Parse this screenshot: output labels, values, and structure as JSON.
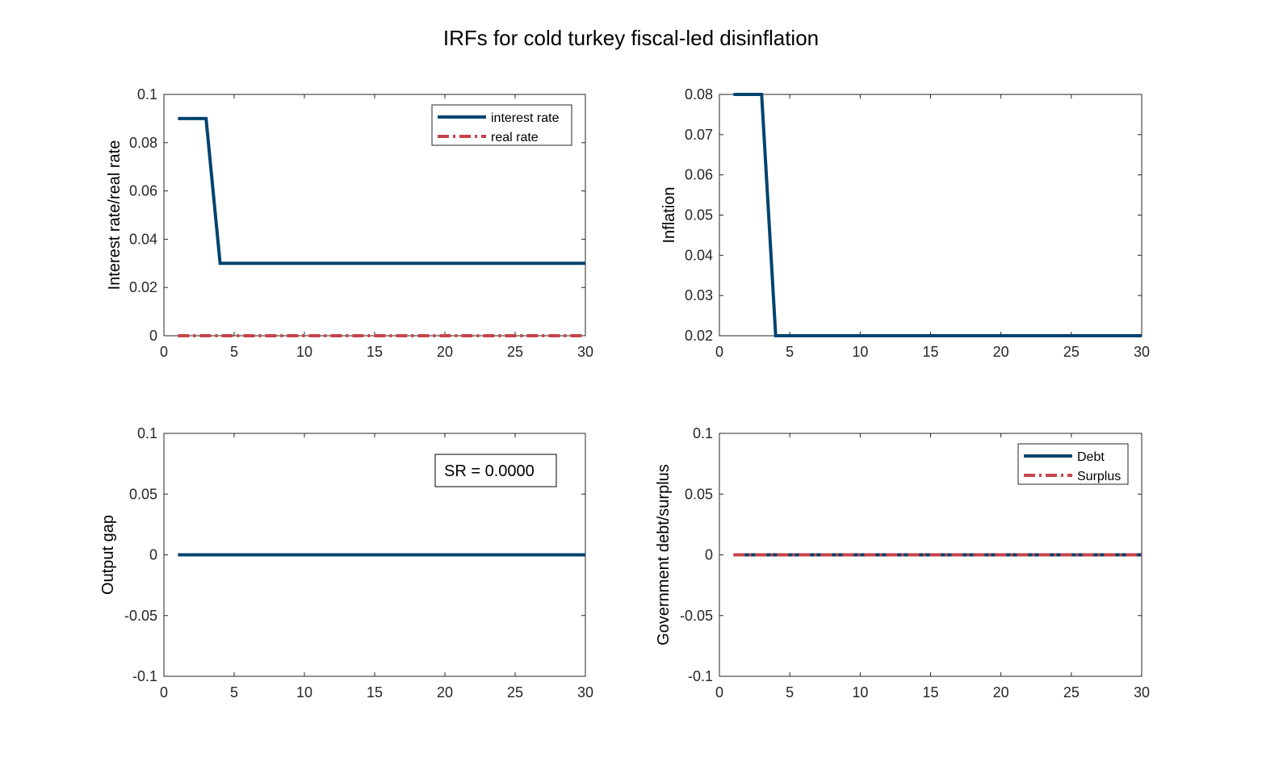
{
  "title": "IRFs for cold turkey fiscal-led disinflation",
  "colors": {
    "blue": "#00436E",
    "red": "#C8434A",
    "axis": "#262626"
  },
  "chart_data": [
    {
      "type": "line",
      "ylabel": "Interest rate/real rate",
      "xlim": [
        0,
        30
      ],
      "ylim": [
        0,
        0.1
      ],
      "xticks": [
        "0",
        "5",
        "10",
        "15",
        "20",
        "25",
        "30"
      ],
      "yticks": [
        "0",
        "0.02",
        "0.04",
        "0.06",
        "0.08",
        "0.1"
      ],
      "legend": "top-right",
      "series": [
        {
          "name": "interest rate",
          "style": "solid",
          "color": "blue",
          "x": [
            1,
            3,
            4,
            30
          ],
          "y": [
            0.09,
            0.09,
            0.03,
            0.03
          ]
        },
        {
          "name": "real rate",
          "style": "dashdot",
          "color": "red",
          "x": [
            1,
            30
          ],
          "y": [
            0,
            0
          ]
        }
      ]
    },
    {
      "type": "line",
      "ylabel": "Inflation",
      "xlim": [
        0,
        30
      ],
      "ylim": [
        0.02,
        0.08
      ],
      "xticks": [
        "0",
        "5",
        "10",
        "15",
        "20",
        "25",
        "30"
      ],
      "yticks": [
        "0.02",
        "0.03",
        "0.04",
        "0.05",
        "0.06",
        "0.07",
        "0.08"
      ],
      "series": [
        {
          "style": "solid",
          "color": "blue",
          "x": [
            1,
            3,
            4,
            30
          ],
          "y": [
            0.08,
            0.08,
            0.02,
            0.02
          ]
        }
      ]
    },
    {
      "type": "line",
      "ylabel": "Output gap",
      "xlim": [
        0,
        30
      ],
      "ylim": [
        -0.1,
        0.1
      ],
      "xticks": [
        "0",
        "5",
        "10",
        "15",
        "20",
        "25",
        "30"
      ],
      "yticks": [
        "-0.1",
        "-0.05",
        "0",
        "0.05",
        "0.1"
      ],
      "annotation": "SR = 0.0000",
      "series": [
        {
          "style": "solid",
          "color": "blue",
          "x": [
            1,
            30
          ],
          "y": [
            0,
            0
          ]
        }
      ]
    },
    {
      "type": "line",
      "ylabel": "Government debt/surplus",
      "xlim": [
        0,
        30
      ],
      "ylim": [
        -0.1,
        0.1
      ],
      "xticks": [
        "0",
        "5",
        "10",
        "15",
        "20",
        "25",
        "30"
      ],
      "yticks": [
        "-0.1",
        "-0.05",
        "0",
        "0.05",
        "0.1"
      ],
      "legend": "top-right",
      "series": [
        {
          "name": "Debt",
          "style": "solid",
          "color": "blue",
          "x": [
            1,
            30
          ],
          "y": [
            0,
            0
          ]
        },
        {
          "name": "Surplus",
          "style": "dashdot",
          "color": "red",
          "x": [
            1,
            30
          ],
          "y": [
            0,
            0
          ]
        }
      ]
    }
  ]
}
